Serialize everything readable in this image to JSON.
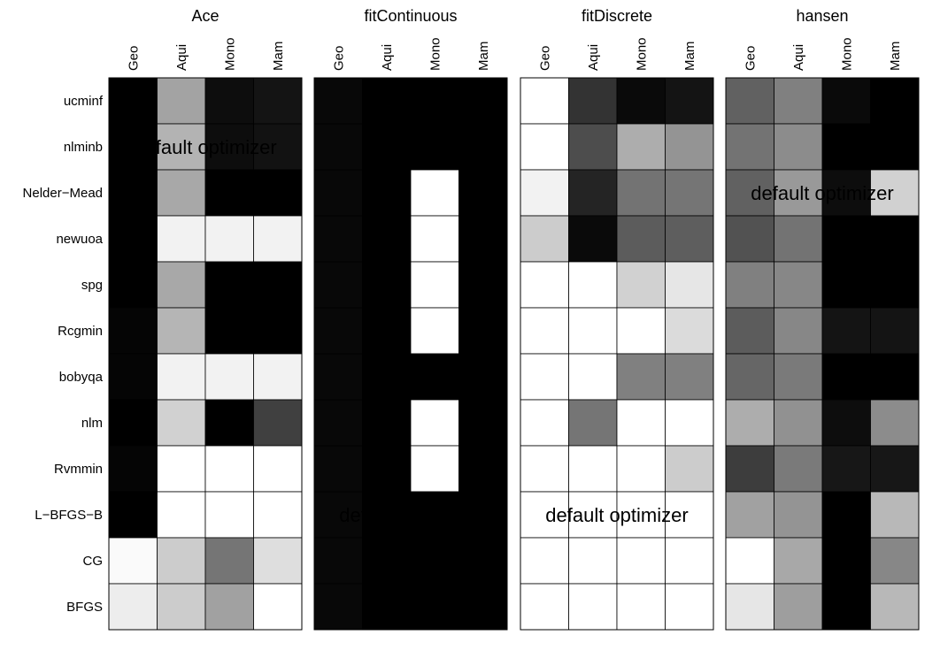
{
  "chart_data": {
    "type": "heatmap",
    "colormap": "grayscale (black to white)",
    "grid": true,
    "rows": [
      "ucminf",
      "nlminb",
      "Nelder−Mead",
      "newuoa",
      "spg",
      "Rcgmin",
      "bobyqa",
      "nlm",
      "Rvmmin",
      "L−BFGS−B",
      "CG",
      "BFGS"
    ],
    "columns": [
      "Geo",
      "Aqui",
      "Mono",
      "Mam"
    ],
    "panels": [
      {
        "title": "Ace",
        "values": [
          [
            0.0,
            0.64,
            0.05,
            0.08
          ],
          [
            0.0,
            0.7,
            0.05,
            0.07
          ],
          [
            0.0,
            0.66,
            0.0,
            0.0
          ],
          [
            0.0,
            0.95,
            0.95,
            0.95
          ],
          [
            0.0,
            0.66,
            0.0,
            0.0
          ],
          [
            0.02,
            0.71,
            0.0,
            0.0
          ],
          [
            0.02,
            0.95,
            0.95,
            0.95
          ],
          [
            0.0,
            0.82,
            0.0,
            0.25
          ],
          [
            0.02,
            1.0,
            1.0,
            1.0
          ],
          [
            0.0,
            1.0,
            1.0,
            1.0
          ],
          [
            0.98,
            0.8,
            0.46,
            0.87
          ],
          [
            0.93,
            0.8,
            0.63,
            1.0
          ]
        ],
        "annotation": {
          "text": "default optimizer",
          "row": 1
        }
      },
      {
        "title": "fitContinuous",
        "values": [
          [
            0.03,
            0.0,
            0.0,
            0.0
          ],
          [
            0.03,
            0.0,
            0.0,
            0.0
          ],
          [
            0.03,
            0.0,
            1.0,
            0.0
          ],
          [
            0.03,
            0.0,
            1.0,
            0.0
          ],
          [
            0.03,
            0.0,
            1.0,
            0.0
          ],
          [
            0.03,
            0.0,
            1.0,
            0.0
          ],
          [
            0.03,
            0.0,
            0.0,
            0.0
          ],
          [
            0.03,
            0.0,
            1.0,
            0.0
          ],
          [
            0.03,
            0.0,
            1.0,
            0.0
          ],
          [
            0.03,
            0.0,
            0.0,
            0.0
          ],
          [
            0.03,
            0.0,
            0.0,
            0.0
          ],
          [
            0.03,
            0.0,
            0.0,
            0.0
          ]
        ],
        "annotation": {
          "text": "default optimizer",
          "row": 9
        }
      },
      {
        "title": "fitDiscrete",
        "values": [
          [
            1.0,
            0.2,
            0.04,
            0.08
          ],
          [
            1.0,
            0.3,
            0.68,
            0.58
          ],
          [
            0.95,
            0.14,
            0.45,
            0.46
          ],
          [
            0.8,
            0.04,
            0.36,
            0.37
          ],
          [
            1.0,
            1.0,
            0.82,
            0.9
          ],
          [
            1.0,
            1.0,
            1.0,
            0.86
          ],
          [
            1.0,
            1.0,
            0.5,
            0.5
          ],
          [
            1.0,
            0.46,
            1.0,
            1.0
          ],
          [
            1.0,
            1.0,
            1.0,
            0.8
          ],
          [
            1.0,
            1.0,
            1.0,
            1.0
          ],
          [
            1.0,
            1.0,
            1.0,
            1.0
          ],
          [
            1.0,
            1.0,
            1.0,
            1.0
          ]
        ],
        "annotation": {
          "text": "default optimizer",
          "row": 9
        }
      },
      {
        "title": "hansen",
        "values": [
          [
            0.38,
            0.5,
            0.04,
            0.0
          ],
          [
            0.45,
            0.55,
            0.0,
            0.0
          ],
          [
            0.38,
            0.6,
            0.05,
            0.82
          ],
          [
            0.32,
            0.45,
            0.0,
            0.0
          ],
          [
            0.5,
            0.53,
            0.0,
            0.0
          ],
          [
            0.36,
            0.53,
            0.08,
            0.08
          ],
          [
            0.4,
            0.48,
            0.0,
            0.0
          ],
          [
            0.68,
            0.57,
            0.05,
            0.55
          ],
          [
            0.24,
            0.48,
            0.09,
            0.09
          ],
          [
            0.63,
            0.58,
            0.0,
            0.72
          ],
          [
            1.0,
            0.66,
            0.0,
            0.53
          ],
          [
            0.9,
            0.62,
            0.0,
            0.72
          ]
        ],
        "annotation": {
          "text": "default optimizer",
          "row": 2
        }
      }
    ]
  }
}
